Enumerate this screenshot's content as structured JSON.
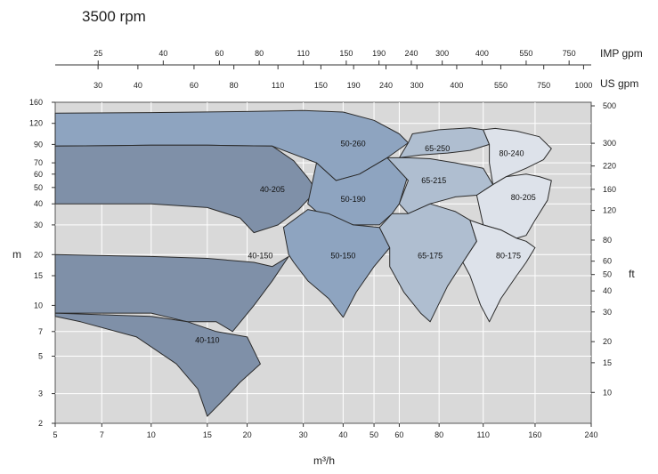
{
  "chart_data": {
    "type": "area",
    "title": "3500 rpm",
    "xlabel": "m³/h",
    "ylabel": "m",
    "y2label": "ft",
    "top_axis_labels": {
      "imp": "IMP gpm",
      "us": "US gpm"
    },
    "x_scale": "log",
    "y_scale": "log",
    "xlim": [
      5,
      240
    ],
    "ylim": [
      2,
      160
    ],
    "y2lim": [
      6.56,
      525
    ],
    "grid": true,
    "x_ticks": [
      5,
      7,
      10,
      15,
      20,
      30,
      40,
      50,
      60,
      80,
      110,
      160,
      240
    ],
    "y_ticks": [
      2,
      3,
      5,
      7,
      10,
      15,
      20,
      30,
      40,
      50,
      60,
      70,
      90,
      120,
      160
    ],
    "ft_ticks": [
      10,
      15,
      20,
      30,
      40,
      50,
      60,
      80,
      120,
      160,
      220,
      300,
      500
    ],
    "us_gpm_ticks": [
      30,
      40,
      60,
      80,
      110,
      150,
      190,
      240,
      300,
      400,
      550,
      750,
      1000
    ],
    "imp_gpm_ticks": [
      25,
      40,
      60,
      80,
      110,
      150,
      190,
      240,
      300,
      400,
      550,
      750
    ],
    "series": [
      {
        "name": "50-260",
        "color": "#8ea4c0",
        "points": [
          [
            5,
            138
          ],
          [
            10,
            139
          ],
          [
            20,
            141
          ],
          [
            30,
            143
          ],
          [
            40,
            140
          ],
          [
            50,
            125
          ],
          [
            60,
            104
          ],
          [
            64,
            92
          ],
          [
            55,
            75
          ],
          [
            45,
            60
          ],
          [
            38,
            55
          ],
          [
            33,
            70
          ],
          [
            24,
            88
          ],
          [
            15,
            89
          ],
          [
            10,
            89
          ],
          [
            5,
            88
          ]
        ]
      },
      {
        "name": "40-205",
        "color": "#7f90a8",
        "points": [
          [
            5,
            88
          ],
          [
            10,
            89
          ],
          [
            15,
            89
          ],
          [
            24,
            88
          ],
          [
            28,
            72
          ],
          [
            31,
            57
          ],
          [
            33,
            48
          ],
          [
            29,
            37
          ],
          [
            25,
            30
          ],
          [
            21,
            27
          ],
          [
            19,
            33
          ],
          [
            15,
            38
          ],
          [
            10,
            40
          ],
          [
            5,
            40
          ]
        ]
      },
      {
        "name": "40-150",
        "color": "#7f90a8",
        "points": [
          [
            5,
            20
          ],
          [
            10,
            19.5
          ],
          [
            15,
            19
          ],
          [
            21,
            18
          ],
          [
            24,
            17
          ],
          [
            27,
            19.5
          ],
          [
            24,
            14
          ],
          [
            21,
            10
          ],
          [
            18,
            7
          ],
          [
            16,
            8
          ],
          [
            13,
            8
          ],
          [
            10,
            9
          ],
          [
            5,
            9
          ]
        ]
      },
      {
        "name": "40-110",
        "color": "#7f90a8",
        "points": [
          [
            5,
            9
          ],
          [
            10,
            8.6
          ],
          [
            13,
            8
          ],
          [
            16,
            7
          ],
          [
            20,
            6.5
          ],
          [
            22,
            4.5
          ],
          [
            19,
            3.5
          ],
          [
            17,
            2.8
          ],
          [
            15,
            2.2
          ],
          [
            14,
            3.2
          ],
          [
            12,
            4.5
          ],
          [
            9,
            6.5
          ],
          [
            6,
            8
          ],
          [
            5,
            8.6
          ]
        ]
      },
      {
        "name": "50-190",
        "color": "#8ea4c0",
        "points": [
          [
            33,
            70
          ],
          [
            38,
            55
          ],
          [
            45,
            60
          ],
          [
            55,
            75
          ],
          [
            64,
            60
          ],
          [
            60,
            40
          ],
          [
            57,
            35
          ],
          [
            52,
            30
          ],
          [
            43,
            30
          ],
          [
            38,
            33
          ],
          [
            33,
            36
          ],
          [
            31,
            40
          ]
        ]
      },
      {
        "name": "50-150",
        "color": "#8ea4c0",
        "points": [
          [
            26,
            29
          ],
          [
            31,
            37
          ],
          [
            36,
            35
          ],
          [
            43,
            30
          ],
          [
            52,
            29
          ],
          [
            56,
            22
          ],
          [
            50,
            17
          ],
          [
            44,
            12
          ],
          [
            40,
            8.5
          ],
          [
            36,
            11
          ],
          [
            31,
            14
          ],
          [
            28,
            18
          ],
          [
            27,
            20
          ]
        ]
      },
      {
        "name": "65-250",
        "color": "#afbed0",
        "points": [
          [
            64,
            92
          ],
          [
            66,
            104
          ],
          [
            80,
            110
          ],
          [
            100,
            113
          ],
          [
            110,
            110
          ],
          [
            115,
            90
          ],
          [
            100,
            83
          ],
          [
            85,
            80
          ],
          [
            70,
            78
          ],
          [
            60,
            75
          ]
        ]
      },
      {
        "name": "65-215",
        "color": "#afbed0",
        "points": [
          [
            55,
            75
          ],
          [
            64,
            75
          ],
          [
            75,
            74
          ],
          [
            90,
            70
          ],
          [
            110,
            65
          ],
          [
            118,
            52
          ],
          [
            105,
            45
          ],
          [
            90,
            44
          ],
          [
            75,
            40
          ],
          [
            64,
            35
          ],
          [
            60,
            40
          ],
          [
            64,
            55
          ]
        ]
      },
      {
        "name": "65-175",
        "color": "#afbed0",
        "points": [
          [
            57,
            35
          ],
          [
            64,
            35
          ],
          [
            75,
            40
          ],
          [
            90,
            36
          ],
          [
            100,
            32
          ],
          [
            105,
            24
          ],
          [
            95,
            18
          ],
          [
            85,
            13
          ],
          [
            75,
            8
          ],
          [
            70,
            9
          ],
          [
            62,
            12
          ],
          [
            56,
            17
          ],
          [
            56,
            22
          ],
          [
            52,
            29
          ]
        ]
      },
      {
        "name": "80-240",
        "color": "#dde2ea",
        "points": [
          [
            110,
            110
          ],
          [
            120,
            112
          ],
          [
            140,
            108
          ],
          [
            165,
            100
          ],
          [
            180,
            85
          ],
          [
            170,
            73
          ],
          [
            150,
            65
          ],
          [
            130,
            58
          ],
          [
            118,
            52
          ],
          [
            115,
            70
          ],
          [
            115,
            90
          ]
        ]
      },
      {
        "name": "80-205",
        "color": "#dde2ea",
        "points": [
          [
            105,
            45
          ],
          [
            118,
            52
          ],
          [
            130,
            58
          ],
          [
            150,
            60
          ],
          [
            165,
            58
          ],
          [
            180,
            55
          ],
          [
            175,
            42
          ],
          [
            160,
            32
          ],
          [
            150,
            26
          ],
          [
            140,
            25
          ],
          [
            125,
            28
          ],
          [
            110,
            30
          ]
        ]
      },
      {
        "name": "80-175",
        "color": "#dde2ea",
        "points": [
          [
            100,
            32
          ],
          [
            110,
            30
          ],
          [
            125,
            28
          ],
          [
            140,
            25
          ],
          [
            150,
            24
          ],
          [
            160,
            22
          ],
          [
            150,
            18
          ],
          [
            140,
            15
          ],
          [
            125,
            11
          ],
          [
            115,
            8
          ],
          [
            108,
            10
          ],
          [
            100,
            15
          ],
          [
            95,
            18
          ],
          [
            105,
            24
          ]
        ]
      }
    ],
    "labels": [
      {
        "name": "50-260",
        "at": [
          43,
          88
        ]
      },
      {
        "name": "40-205",
        "at": [
          24,
          47
        ]
      },
      {
        "name": "40-150",
        "at": [
          22,
          19
        ]
      },
      {
        "name": "40-110",
        "at": [
          15,
          6
        ]
      },
      {
        "name": "50-190",
        "at": [
          43,
          41
        ]
      },
      {
        "name": "50-150",
        "at": [
          40,
          19
        ]
      },
      {
        "name": "65-250",
        "at": [
          79,
          82
        ]
      },
      {
        "name": "65-215",
        "at": [
          77,
          53
        ]
      },
      {
        "name": "65-175",
        "at": [
          75,
          19
        ]
      },
      {
        "name": "80-240",
        "at": [
          135,
          77
        ]
      },
      {
        "name": "80-205",
        "at": [
          147,
          42
        ]
      },
      {
        "name": "80-175",
        "at": [
          132,
          19
        ]
      }
    ]
  }
}
